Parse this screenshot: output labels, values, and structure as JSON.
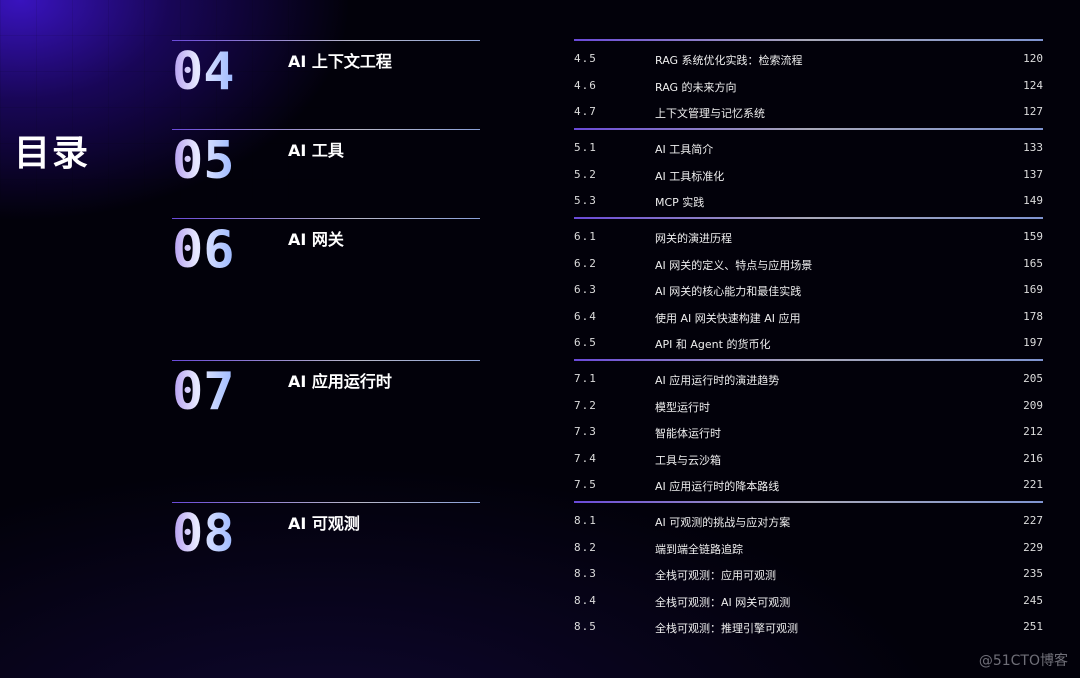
{
  "title": "目录",
  "chapters": [
    {
      "num": "04",
      "name": "AI 上下文工程"
    },
    {
      "num": "05",
      "name": "AI 工具"
    },
    {
      "num": "06",
      "name": "AI 网关"
    },
    {
      "num": "07",
      "name": "AI 应用运行时"
    },
    {
      "num": "08",
      "name": "AI 可观测"
    }
  ],
  "sections": [
    {
      "items": [
        {
          "n": "4.5",
          "t": "RAG 系统优化实践：检索流程",
          "p": "120"
        },
        {
          "n": "4.6",
          "t": "RAG 的未来方向",
          "p": "124"
        },
        {
          "n": "4.7",
          "t": "上下文管理与记忆系统",
          "p": "127"
        }
      ]
    },
    {
      "items": [
        {
          "n": "5.1",
          "t": "AI 工具简介",
          "p": "133"
        },
        {
          "n": "5.2",
          "t": "AI 工具标准化",
          "p": "137"
        },
        {
          "n": "5.3",
          "t": "MCP 实践",
          "p": "149"
        }
      ]
    },
    {
      "items": [
        {
          "n": "6.1",
          "t": "网关的演进历程",
          "p": "159"
        },
        {
          "n": "6.2",
          "t": "AI 网关的定义、特点与应用场景",
          "p": "165"
        },
        {
          "n": "6.3",
          "t": "AI 网关的核心能力和最佳实践",
          "p": "169"
        },
        {
          "n": "6.4",
          "t": "使用 AI 网关快速构建 AI 应用",
          "p": "178"
        },
        {
          "n": "6.5",
          "t": "API 和 Agent 的货币化",
          "p": "197"
        }
      ]
    },
    {
      "items": [
        {
          "n": "7.1",
          "t": "AI 应用运行时的演进趋势",
          "p": "205"
        },
        {
          "n": "7.2",
          "t": "模型运行时",
          "p": "209"
        },
        {
          "n": "7.3",
          "t": "智能体运行时",
          "p": "212"
        },
        {
          "n": "7.4",
          "t": "工具与云沙箱",
          "p": "216"
        },
        {
          "n": "7.5",
          "t": "AI 应用运行时的降本路线",
          "p": "221"
        }
      ]
    },
    {
      "items": [
        {
          "n": "8.1",
          "t": "AI 可观测的挑战与应对方案",
          "p": "227"
        },
        {
          "n": "8.2",
          "t": "端到端全链路追踪",
          "p": "229"
        },
        {
          "n": "8.3",
          "t": "全栈可观测：应用可观测",
          "p": "235"
        },
        {
          "n": "8.4",
          "t": "全栈可观测：AI 网关可观测",
          "p": "245"
        },
        {
          "n": "8.5",
          "t": "全栈可观测：推理引擎可观测",
          "p": "251"
        }
      ]
    }
  ],
  "watermark": "@51CTO博客"
}
